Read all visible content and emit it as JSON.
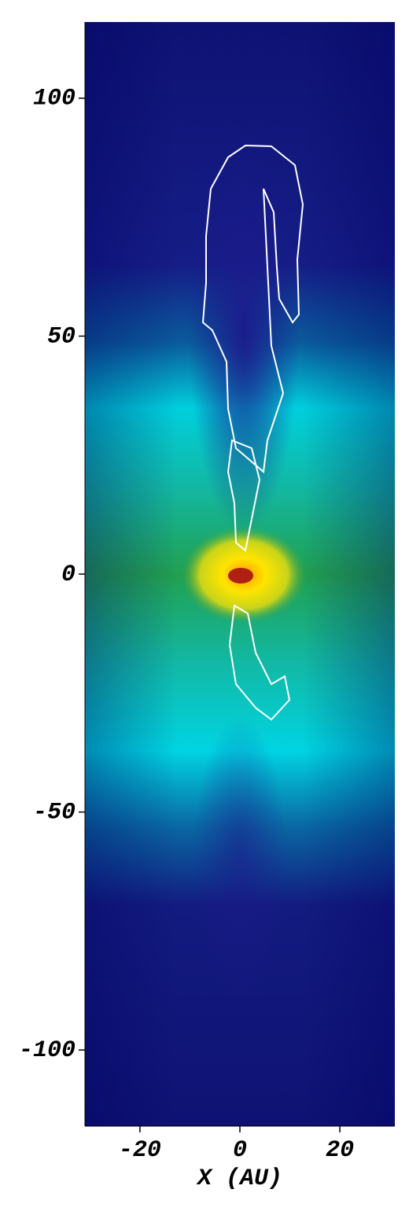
{
  "chart_data": {
    "type": "image",
    "xlabel": "X (AU)",
    "xlim": [
      -31,
      31
    ],
    "xticks": [
      -20,
      0,
      20
    ],
    "ylim": [
      -116,
      116
    ],
    "yticks": [
      -100,
      -50,
      0,
      50,
      100
    ]
  }
}
